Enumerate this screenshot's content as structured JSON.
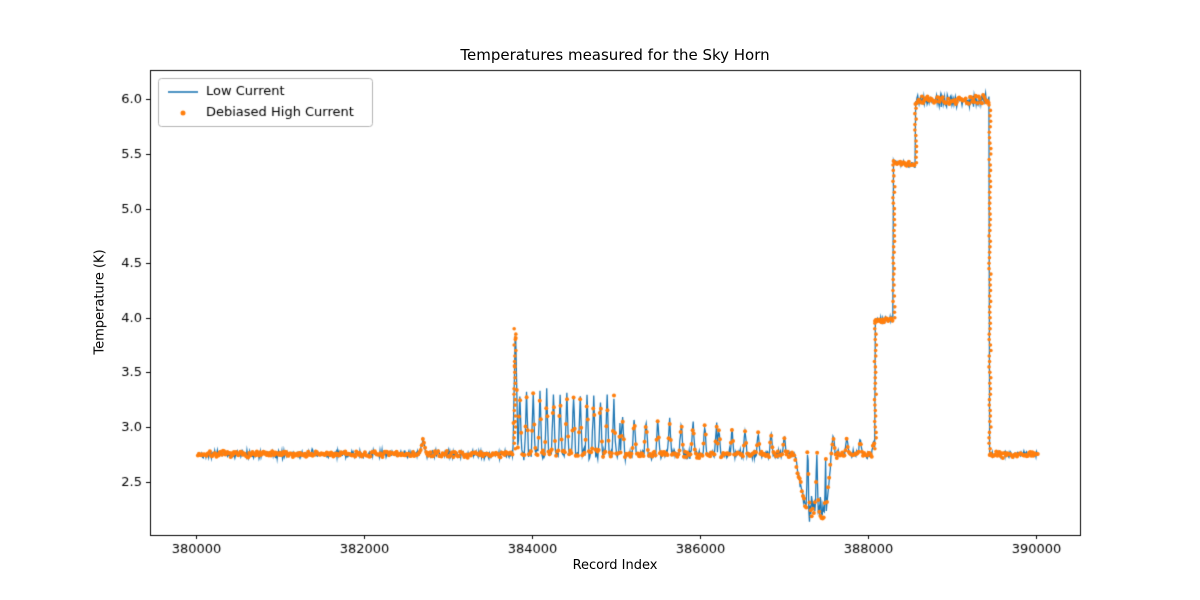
{
  "chart_data": {
    "type": "line+scatter",
    "title": "Temperatures measured for the Sky Horn",
    "xlabel": "Record Index",
    "ylabel": "Temperature (K)",
    "xlim": [
      379450,
      390520
    ],
    "ylim": [
      2.01,
      6.27
    ],
    "xticks": [
      380000,
      382000,
      384000,
      386000,
      388000,
      390000
    ],
    "yticks": [
      2.5,
      3.0,
      3.5,
      4.0,
      4.5,
      5.0,
      5.5,
      6.0
    ],
    "grid": false,
    "legend_position": "upper-left",
    "axis_color": "#000000",
    "legend_border_color": "#b3b3b3",
    "series": [
      {
        "name": "Low Current",
        "type": "line",
        "color": "#1f77b4",
        "sample_step": 8,
        "line_width": 1.3,
        "noise_scale": 1.3
      },
      {
        "name": "Debiased High Current",
        "type": "scatter",
        "color": "#ff7f0e",
        "sample_step": 13,
        "marker_radius": 2.0,
        "noise_scale": 1.0
      }
    ],
    "segments": [
      {
        "x0": 380020,
        "x1": 382660,
        "kind": "flat",
        "base": 2.75,
        "noise": 0.013
      },
      {
        "x0": 382660,
        "x1": 382740,
        "kind": "spike",
        "base": 2.75,
        "peak": 2.89,
        "noise": 0.01
      },
      {
        "x0": 382740,
        "x1": 383770,
        "kind": "flat",
        "base": 2.75,
        "noise": 0.013
      },
      {
        "x0": 383770,
        "x1": 383830,
        "kind": "spike",
        "base": 2.76,
        "peak": 3.95,
        "noise": 0.015
      },
      {
        "x0": 383830,
        "x1": 385050,
        "kind": "comb",
        "base": 2.76,
        "peak0": 3.33,
        "peak1": 3.26,
        "period": 80,
        "duty": 0.55,
        "noise": 0.02
      },
      {
        "x0": 385050,
        "x1": 386200,
        "kind": "comb",
        "base": 2.75,
        "peak0": 3.1,
        "peak1": 3.02,
        "period": 140,
        "duty": 0.35,
        "noise": 0.015
      },
      {
        "x0": 386200,
        "x1": 387120,
        "kind": "comb",
        "base": 2.75,
        "peak0": 3.0,
        "peak1": 2.92,
        "period": 155,
        "duty": 0.3,
        "noise": 0.015
      },
      {
        "x0": 387120,
        "x1": 387260,
        "kind": "ramp",
        "v0": 2.75,
        "v1": 2.24,
        "noise": 0.02
      },
      {
        "x0": 387260,
        "x1": 387500,
        "kind": "comb",
        "base": 2.23,
        "peak0": 2.82,
        "peak1": 2.8,
        "period": 110,
        "duty": 0.32,
        "noise": 0.05
      },
      {
        "x0": 387500,
        "x1": 387560,
        "kind": "ramp",
        "v0": 2.24,
        "v1": 2.75,
        "noise": 0.02
      },
      {
        "x0": 387560,
        "x1": 388080,
        "kind": "comb",
        "base": 2.75,
        "peak0": 2.92,
        "peak1": 2.88,
        "period": 160,
        "duty": 0.3,
        "noise": 0.013
      },
      {
        "x0": 388080,
        "x1": 388300,
        "kind": "flat",
        "base": 3.98,
        "noise": 0.012
      },
      {
        "x0": 388300,
        "x1": 388560,
        "kind": "ramp",
        "v0": 5.43,
        "v1": 5.39,
        "noise": 0.012
      },
      {
        "x0": 388560,
        "x1": 389440,
        "kind": "flat",
        "base": 5.99,
        "noise": 0.02
      },
      {
        "x0": 389440,
        "x1": 390030,
        "kind": "flat",
        "base": 2.75,
        "noise": 0.012
      }
    ],
    "dot_columns": [
      {
        "x": 383795,
        "y0": 2.8,
        "y1": 3.93
      },
      {
        "x": 388085,
        "y0": 2.8,
        "y1": 3.96
      },
      {
        "x": 388305,
        "y0": 4.0,
        "y1": 5.4
      },
      {
        "x": 388565,
        "y0": 5.42,
        "y1": 5.96
      },
      {
        "x": 389448,
        "y0": 2.8,
        "y1": 5.96
      }
    ]
  }
}
